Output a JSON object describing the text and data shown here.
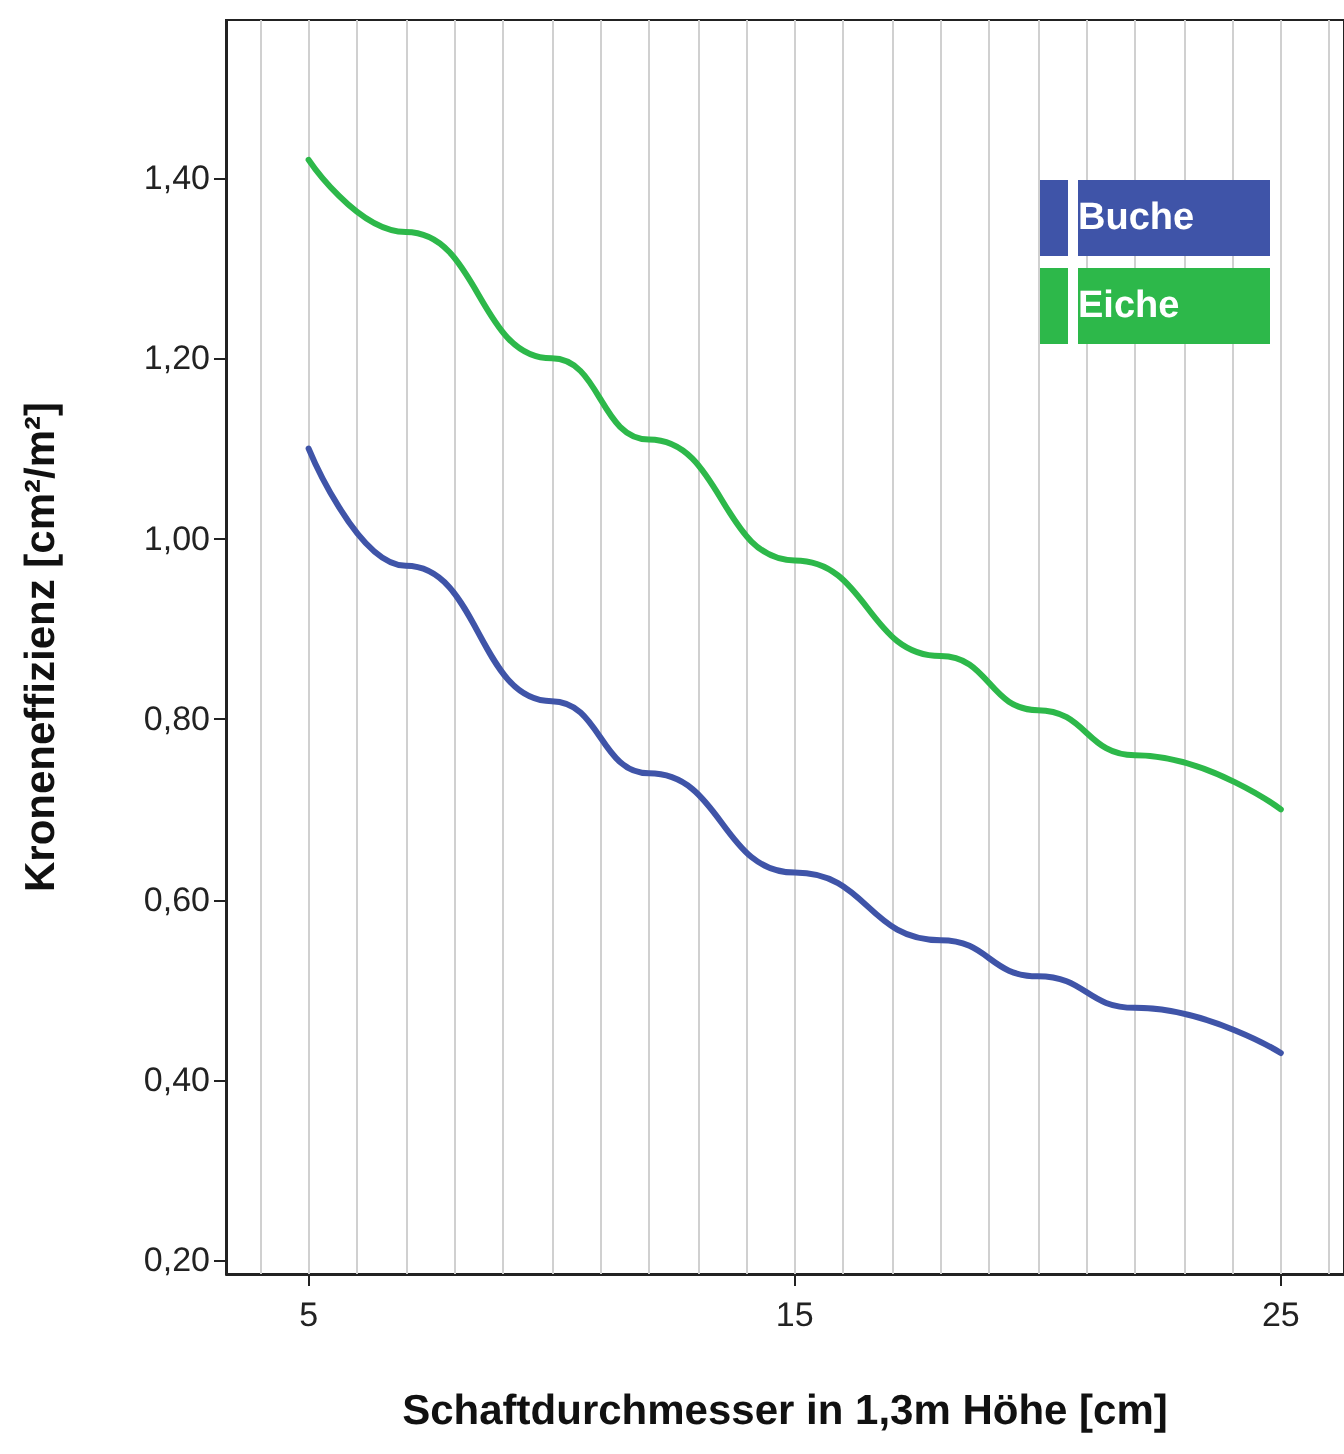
{
  "chart_data": {
    "type": "line",
    "xlabel": "Schaftdurchmesser in 1,3m Höhe [cm]",
    "ylabel": "Kroneneffizienz [cm²/m²]",
    "xlim": [
      3.3,
      26.3
    ],
    "xticks": [
      5,
      15,
      25
    ],
    "ylim": [
      0.185,
      1.575
    ],
    "yticks": [
      {
        "value": 0.2,
        "label": "0,20"
      },
      {
        "value": 0.4,
        "label": "0,40"
      },
      {
        "value": 0.6,
        "label": "0,60"
      },
      {
        "value": 0.8,
        "label": "0,80"
      },
      {
        "value": 1.0,
        "label": "1,00"
      },
      {
        "value": 1.2,
        "label": "1,20"
      },
      {
        "value": 1.4,
        "label": "1,40"
      }
    ],
    "grid": "x",
    "legend": "top right",
    "marker": "none",
    "line_style": "solid",
    "x": [
      5,
      7,
      10,
      12,
      15,
      18,
      20,
      22,
      25
    ],
    "series": [
      {
        "name": "Buche",
        "color": "#3f54a8",
        "values": [
          1.1,
          0.97,
          0.82,
          0.74,
          0.63,
          0.555,
          0.515,
          0.48,
          0.43
        ]
      },
      {
        "name": "Eiche",
        "color": "#2db84a",
        "values": [
          1.42,
          1.34,
          1.2,
          1.11,
          0.976,
          0.87,
          0.81,
          0.76,
          0.7
        ]
      }
    ]
  }
}
